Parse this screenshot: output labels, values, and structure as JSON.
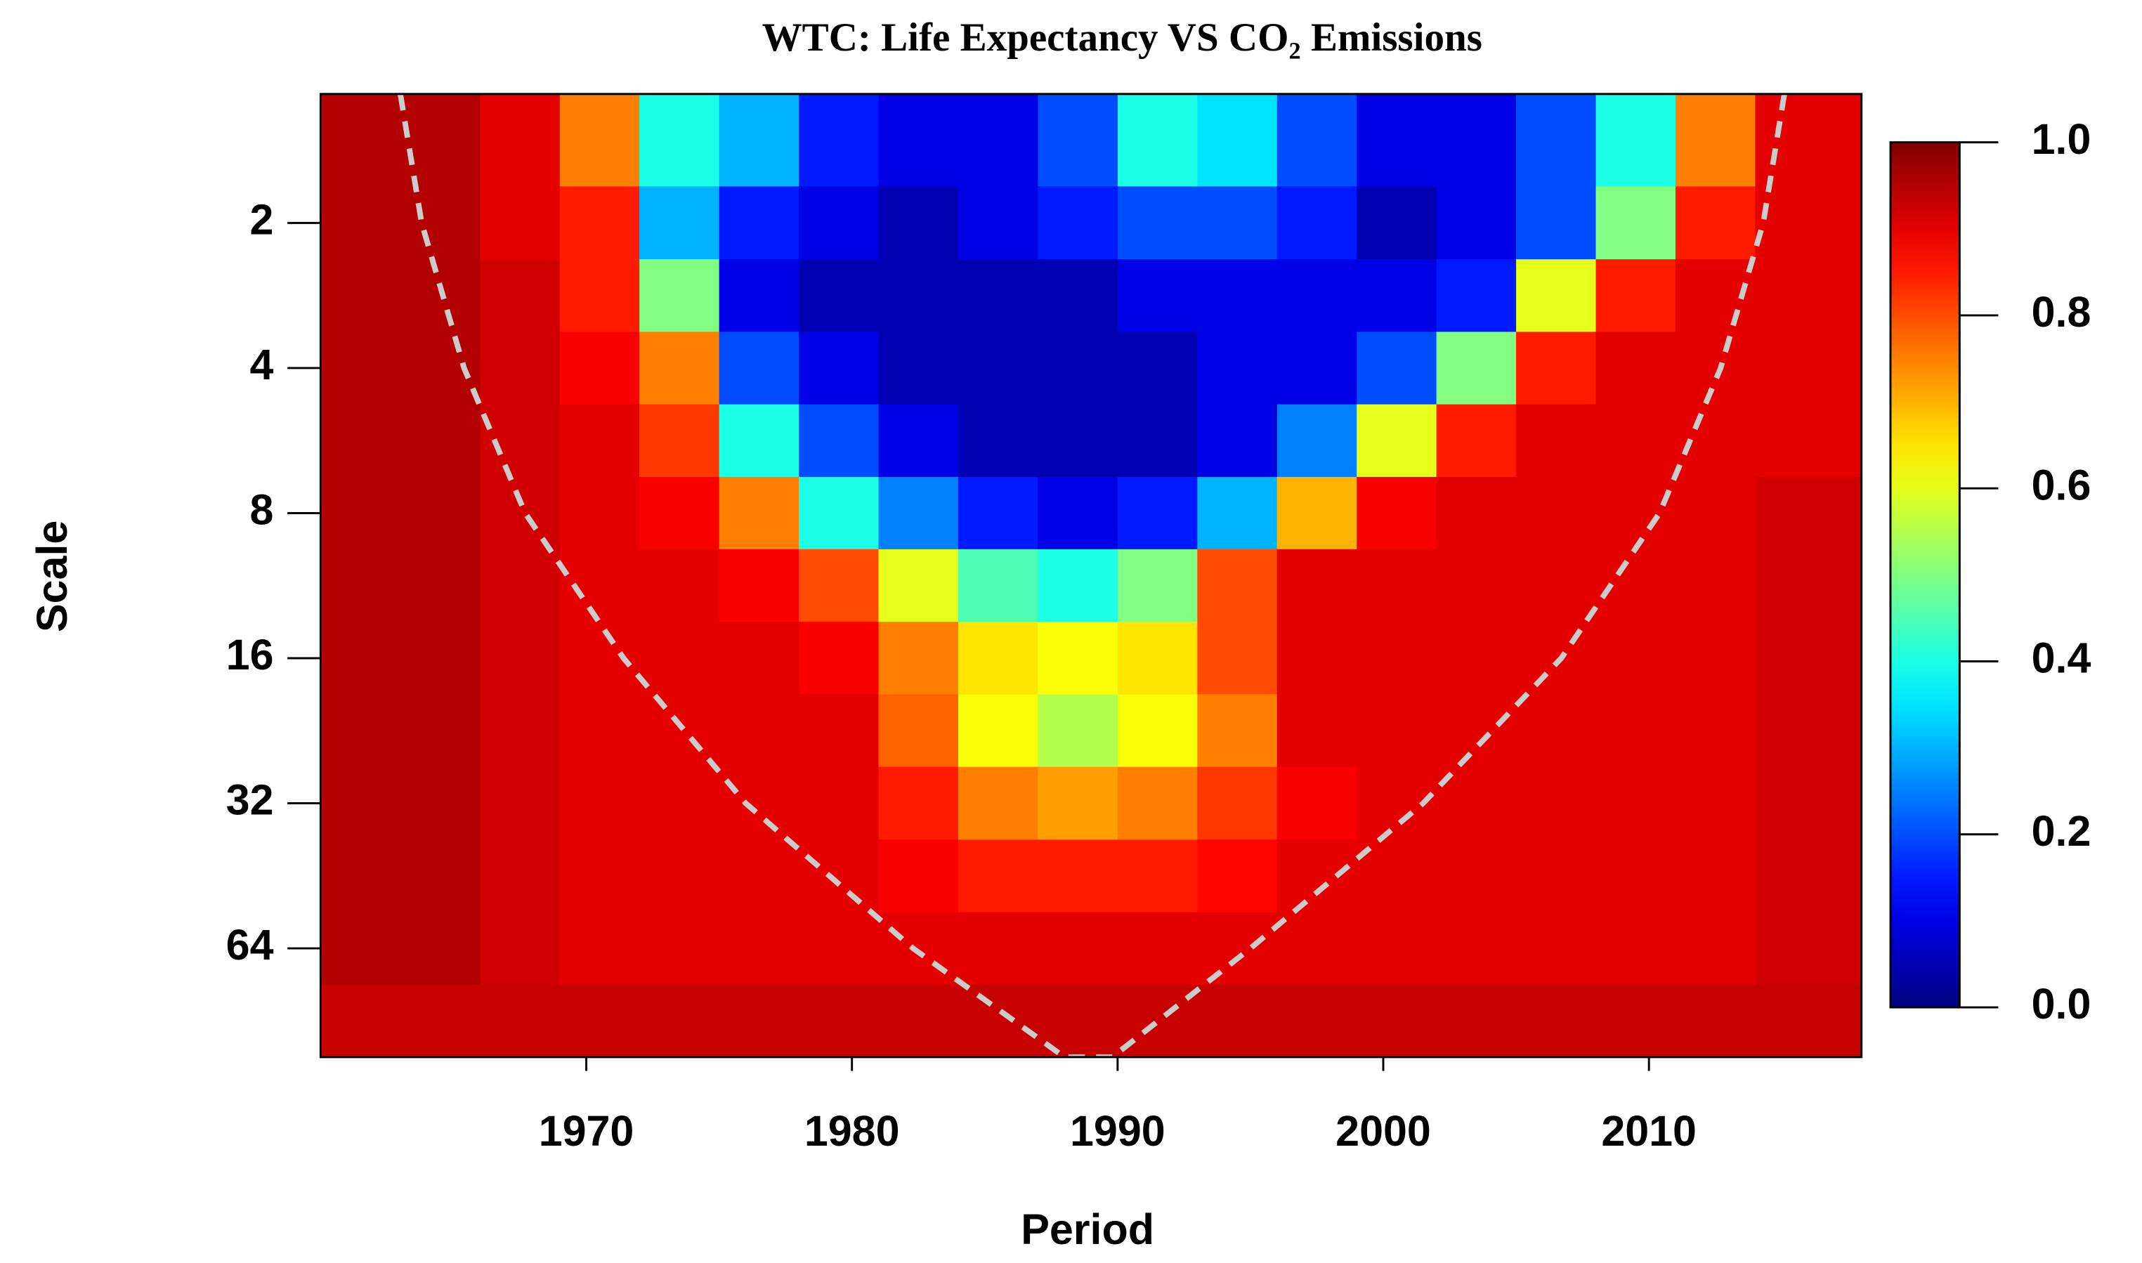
{
  "chart_data": {
    "type": "heatmap",
    "title": "WTC: Life Expectancy VS CO₂ Emissions",
    "x_label": "Period",
    "y_label": "Scale",
    "x": [
      1961.5,
      1964.5,
      1967.5,
      1970.5,
      1973.5,
      1976.5,
      1979.5,
      1982.5,
      1985.5,
      1988.5,
      1991.5,
      1994.5,
      1997.5,
      2000.5,
      2003.5,
      2006.5,
      2009.5,
      2012.5,
      2015.5
    ],
    "y": [
      1.41,
      2,
      2.83,
      4,
      5.66,
      8,
      11.3,
      16,
      22.6,
      32,
      45.3,
      64,
      90.5
    ],
    "values": [
      [
        0.95,
        0.95,
        0.9,
        0.75,
        0.4,
        0.3,
        0.15,
        0.1,
        0.1,
        0.2,
        0.4,
        0.35,
        0.2,
        0.1,
        0.1,
        0.2,
        0.4,
        0.75,
        0.9
      ],
      [
        0.95,
        0.95,
        0.9,
        0.85,
        0.3,
        0.15,
        0.1,
        0.05,
        0.1,
        0.15,
        0.2,
        0.2,
        0.15,
        0.05,
        0.1,
        0.2,
        0.5,
        0.85,
        0.9
      ],
      [
        0.95,
        0.95,
        0.92,
        0.85,
        0.5,
        0.1,
        0.05,
        0.05,
        0.05,
        0.05,
        0.1,
        0.1,
        0.1,
        0.1,
        0.15,
        0.6,
        0.85,
        0.9,
        0.9
      ],
      [
        0.95,
        0.95,
        0.92,
        0.88,
        0.75,
        0.2,
        0.1,
        0.05,
        0.05,
        0.05,
        0.05,
        0.1,
        0.1,
        0.2,
        0.5,
        0.85,
        0.9,
        0.9,
        0.9
      ],
      [
        0.95,
        0.95,
        0.92,
        0.9,
        0.82,
        0.4,
        0.2,
        0.1,
        0.05,
        0.05,
        0.05,
        0.1,
        0.25,
        0.6,
        0.85,
        0.9,
        0.9,
        0.9,
        0.9
      ],
      [
        0.95,
        0.95,
        0.92,
        0.9,
        0.88,
        0.75,
        0.4,
        0.25,
        0.15,
        0.1,
        0.15,
        0.3,
        0.7,
        0.88,
        0.9,
        0.9,
        0.9,
        0.9,
        0.92
      ],
      [
        0.95,
        0.95,
        0.92,
        0.9,
        0.9,
        0.88,
        0.8,
        0.6,
        0.45,
        0.4,
        0.5,
        0.8,
        0.9,
        0.9,
        0.9,
        0.9,
        0.9,
        0.9,
        0.92
      ],
      [
        0.95,
        0.95,
        0.92,
        0.9,
        0.9,
        0.9,
        0.88,
        0.75,
        0.65,
        0.62,
        0.65,
        0.8,
        0.9,
        0.9,
        0.9,
        0.9,
        0.9,
        0.9,
        0.92
      ],
      [
        0.95,
        0.95,
        0.92,
        0.9,
        0.9,
        0.9,
        0.9,
        0.78,
        0.62,
        0.55,
        0.62,
        0.75,
        0.9,
        0.9,
        0.9,
        0.9,
        0.9,
        0.9,
        0.92
      ],
      [
        0.95,
        0.95,
        0.92,
        0.9,
        0.9,
        0.9,
        0.9,
        0.85,
        0.75,
        0.72,
        0.75,
        0.82,
        0.88,
        0.9,
        0.9,
        0.9,
        0.9,
        0.9,
        0.92
      ],
      [
        0.95,
        0.95,
        0.92,
        0.9,
        0.9,
        0.9,
        0.9,
        0.88,
        0.85,
        0.85,
        0.85,
        0.87,
        0.9,
        0.9,
        0.9,
        0.9,
        0.9,
        0.9,
        0.92
      ],
      [
        0.95,
        0.95,
        0.92,
        0.9,
        0.9,
        0.9,
        0.9,
        0.9,
        0.9,
        0.9,
        0.9,
        0.9,
        0.9,
        0.9,
        0.9,
        0.9,
        0.9,
        0.9,
        0.92
      ],
      [
        0.93,
        0.93,
        0.93,
        0.93,
        0.93,
        0.93,
        0.93,
        0.93,
        0.93,
        0.93,
        0.93,
        0.93,
        0.93,
        0.93,
        0.93,
        0.93,
        0.93,
        0.93,
        0.93
      ]
    ],
    "coi": {
      "x": [
        1963.0,
        1963.8,
        1965.4,
        1967.7,
        1971.4,
        1976.0,
        1982.3,
        1988.0,
        1989.8,
        1995.0,
        2001.5,
        2006.7,
        2010.4,
        2012.7,
        2014.3,
        2015.1
      ],
      "y": [
        1.08,
        2,
        4,
        8,
        16,
        32,
        64,
        107.6,
        107.6,
        64,
        32,
        16,
        8,
        4,
        2,
        1.08
      ],
      "color": "#cccccc"
    },
    "xlim": [
      1960,
      2018
    ],
    "ylim": [
      1.08,
      107.6
    ],
    "y_log": true,
    "y_inverted": true,
    "xticks": [
      1970,
      1980,
      1990,
      2000,
      2010
    ],
    "yticks": [
      2,
      4,
      8,
      16,
      32,
      64
    ],
    "clim": [
      0,
      1
    ],
    "cticks": [
      {
        "value": 0,
        "label": "0.0"
      },
      0.2,
      0.4,
      0.6,
      0.8,
      {
        "value": 1,
        "label": "1.0"
      }
    ],
    "colormap": "jet"
  }
}
